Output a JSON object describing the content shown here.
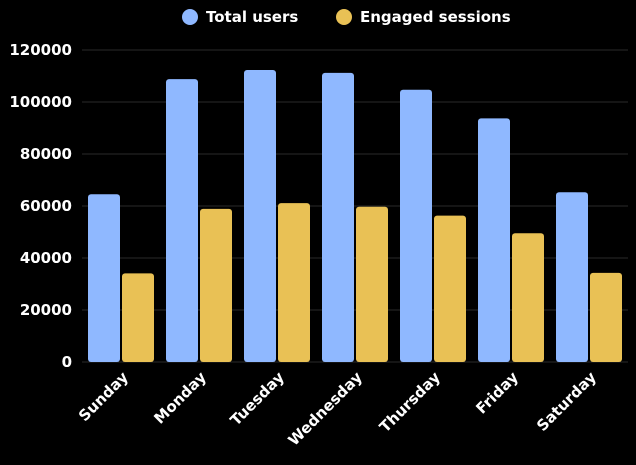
{
  "chart_data": {
    "type": "bar",
    "categories": [
      "Sunday",
      "Monday",
      "Tuesday",
      "Wednesday",
      "Thursday",
      "Friday",
      "Saturday"
    ],
    "series": [
      {
        "name": "Total users",
        "color": "#8fb8ff",
        "values": [
          64500,
          108800,
          112300,
          111200,
          104700,
          93700,
          65300
        ]
      },
      {
        "name": "Engaged sessions",
        "color": "#e9c155",
        "values": [
          34100,
          58900,
          61100,
          59700,
          56300,
          49500,
          34300
        ]
      }
    ],
    "ylim": [
      0,
      120000
    ],
    "yticks": [
      0,
      20000,
      40000,
      60000,
      80000,
      100000,
      120000
    ],
    "grid": true,
    "legend_position": "top"
  }
}
